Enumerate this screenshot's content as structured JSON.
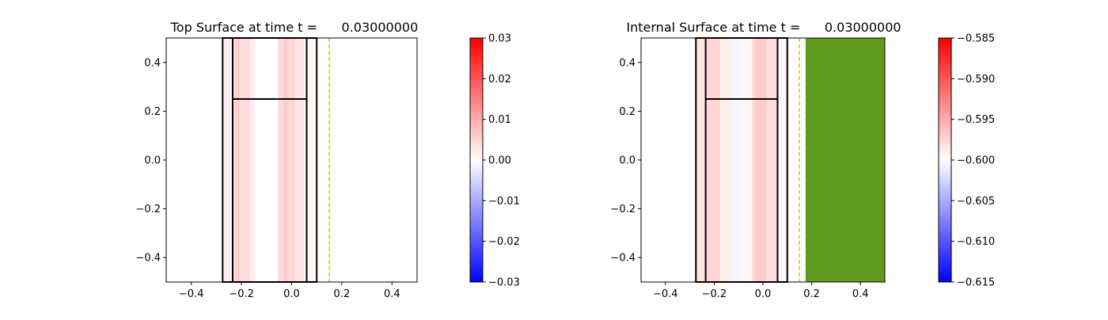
{
  "chart_data": [
    {
      "type": "heatmap",
      "title": "Top Surface at time t =      0.03000000",
      "xlim": [
        -0.5,
        0.5
      ],
      "ylim": [
        -0.5,
        0.5
      ],
      "x_ticks": [
        -0.4,
        -0.2,
        0.0,
        0.2,
        0.4
      ],
      "x_tick_labels": [
        "−0.4",
        "−0.2",
        "0.0",
        "0.2",
        "0.4"
      ],
      "y_ticks": [
        -0.4,
        -0.2,
        0.0,
        0.2,
        0.4
      ],
      "y_tick_labels": [
        "−0.4",
        "−0.2",
        "0.0",
        "0.2",
        "0.4"
      ],
      "colormap": "bwr",
      "colorbar": {
        "min": -0.03,
        "max": 0.03,
        "ticks": [
          -0.03,
          -0.02,
          -0.01,
          0.0,
          0.01,
          0.02,
          0.03
        ],
        "tick_labels": [
          "−0.03",
          "−0.02",
          "−0.01",
          "0.00",
          "0.01",
          "0.02",
          "0.03"
        ]
      },
      "field_x_range": [
        -0.275,
        0.1
      ],
      "field_bands": [
        {
          "x0": -0.275,
          "x1": -0.235,
          "value": 0.002
        },
        {
          "x0": -0.235,
          "x1": -0.225,
          "value": 0.004
        },
        {
          "x0": -0.225,
          "x1": -0.205,
          "value": 0.006
        },
        {
          "x0": -0.205,
          "x1": -0.165,
          "value": 0.004
        },
        {
          "x0": -0.165,
          "x1": -0.145,
          "value": 0.002
        },
        {
          "x0": -0.145,
          "x1": -0.055,
          "value": 0.0
        },
        {
          "x0": -0.055,
          "x1": -0.035,
          "value": 0.004
        },
        {
          "x0": -0.035,
          "x1": -0.015,
          "value": 0.006
        },
        {
          "x0": -0.015,
          "x1": 0.015,
          "value": 0.005
        },
        {
          "x0": 0.015,
          "x1": 0.05,
          "value": 0.003
        },
        {
          "x0": 0.05,
          "x1": 0.1,
          "value": 0.001
        }
      ],
      "fill_regions": [],
      "outlines": [
        {
          "x0": -0.275,
          "x1": 0.1,
          "y0": -0.5,
          "y1": 0.5
        },
        {
          "x0": -0.235,
          "x1": 0.06,
          "y0": -0.5,
          "y1": 0.5
        }
      ],
      "hlines": [
        {
          "x0": -0.235,
          "x1": 0.06,
          "y": 0.25
        }
      ],
      "dashed_vline": {
        "x": 0.15,
        "color": "#bfbf00"
      }
    },
    {
      "type": "heatmap",
      "title": "Internal Surface at time t =      0.03000000",
      "xlim": [
        -0.5,
        0.5
      ],
      "ylim": [
        -0.5,
        0.5
      ],
      "x_ticks": [
        -0.4,
        -0.2,
        0.0,
        0.2,
        0.4
      ],
      "x_tick_labels": [
        "−0.4",
        "−0.2",
        "0.0",
        "0.2",
        "0.4"
      ],
      "y_ticks": [
        -0.4,
        -0.2,
        0.0,
        0.2,
        0.4
      ],
      "y_tick_labels": [
        "−0.4",
        "−0.2",
        "0.0",
        "0.2",
        "0.4"
      ],
      "colormap": "bwr",
      "colorbar": {
        "min": -0.615,
        "max": -0.585,
        "ticks": [
          -0.615,
          -0.61,
          -0.605,
          -0.6,
          -0.595,
          -0.59,
          -0.585
        ],
        "tick_labels": [
          "−0.615",
          "−0.610",
          "−0.605",
          "−0.600",
          "−0.595",
          "−0.590",
          "−0.585"
        ]
      },
      "field_x_range": [
        -0.275,
        0.1
      ],
      "field_bands": [
        {
          "x0": -0.275,
          "x1": -0.235,
          "value": -0.5985
        },
        {
          "x0": -0.235,
          "x1": -0.175,
          "value": -0.5975
        },
        {
          "x0": -0.175,
          "x1": -0.125,
          "value": -0.599
        },
        {
          "x0": -0.125,
          "x1": -0.085,
          "value": -0.6005
        },
        {
          "x0": -0.085,
          "x1": -0.045,
          "value": -0.5995
        },
        {
          "x0": -0.045,
          "x1": -0.035,
          "value": -0.598
        },
        {
          "x0": -0.035,
          "x1": 0.015,
          "value": -0.597
        },
        {
          "x0": 0.015,
          "x1": 0.06,
          "value": -0.598
        },
        {
          "x0": 0.06,
          "x1": 0.1,
          "value": -0.5995
        }
      ],
      "fill_regions": [
        {
          "x0": 0.175,
          "x1": 0.5,
          "color": "#5e9a1b"
        }
      ],
      "outlines": [
        {
          "x0": -0.275,
          "x1": 0.1,
          "y0": -0.5,
          "y1": 0.5
        },
        {
          "x0": -0.235,
          "x1": 0.06,
          "y0": -0.5,
          "y1": 0.5
        }
      ],
      "hlines": [
        {
          "x0": -0.235,
          "x1": 0.06,
          "y": 0.25
        }
      ],
      "dashed_vline": {
        "x": 0.15,
        "color": "#bfbf00"
      }
    }
  ]
}
